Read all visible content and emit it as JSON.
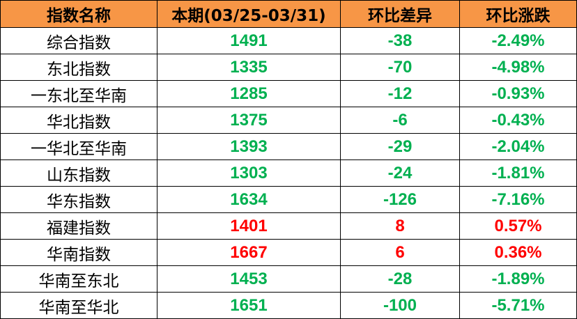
{
  "colors": {
    "header_bg": "#F79646",
    "down": "#00B050",
    "up": "#FF0000"
  },
  "headers": [
    "指数名称",
    "本期(03/25-03/31)",
    "环比差异",
    "环比涨跌"
  ],
  "rows": [
    {
      "name": "综合指数",
      "value": "1491",
      "diff": "-38",
      "pct": "-2.49%",
      "trend": "down"
    },
    {
      "name": "东北指数",
      "value": "1335",
      "diff": "-70",
      "pct": "-4.98%",
      "trend": "down"
    },
    {
      "name": "一东北至华南",
      "value": "1285",
      "diff": "-12",
      "pct": "-0.93%",
      "trend": "down"
    },
    {
      "name": "华北指数",
      "value": "1375",
      "diff": "-6",
      "pct": "-0.43%",
      "trend": "down"
    },
    {
      "name": "一华北至华南",
      "value": "1393",
      "diff": "-29",
      "pct": "-2.04%",
      "trend": "down"
    },
    {
      "name": "山东指数",
      "value": "1303",
      "diff": "-24",
      "pct": "-1.81%",
      "trend": "down"
    },
    {
      "name": "华东指数",
      "value": "1634",
      "diff": "-126",
      "pct": "-7.16%",
      "trend": "down"
    },
    {
      "name": "福建指数",
      "value": "1401",
      "diff": "8",
      "pct": "0.57%",
      "trend": "up"
    },
    {
      "name": "华南指数",
      "value": "1667",
      "diff": "6",
      "pct": "0.36%",
      "trend": "up"
    },
    {
      "name": "华南至东北",
      "value": "1453",
      "diff": "-28",
      "pct": "-1.89%",
      "trend": "down"
    },
    {
      "name": "华南至华北",
      "value": "1651",
      "diff": "-100",
      "pct": "-5.71%",
      "trend": "down"
    }
  ]
}
